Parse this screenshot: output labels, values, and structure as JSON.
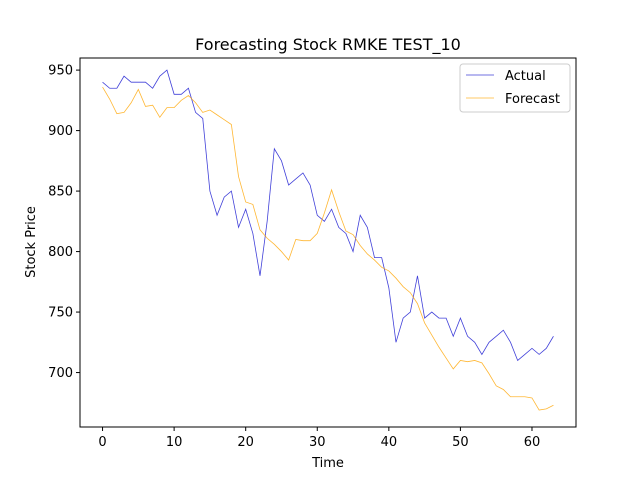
{
  "chart_data": {
    "type": "line",
    "title": "Forecasting Stock RMKE TEST_10",
    "xlabel": "Time",
    "ylabel": "Stock Price",
    "xlim": [
      -3.15,
      66.15
    ],
    "ylim": [
      655,
      960
    ],
    "xticks": [
      0,
      10,
      20,
      30,
      40,
      50,
      60
    ],
    "yticks": [
      700,
      750,
      800,
      850,
      900,
      950
    ],
    "grid": false,
    "legend_position": "top-right",
    "series": [
      {
        "name": "Actual",
        "color": "#0000cc",
        "values": [
          940,
          935,
          935,
          945,
          940,
          940,
          940,
          935,
          945,
          950,
          930,
          930,
          935,
          915,
          910,
          850,
          830,
          845,
          850,
          820,
          835,
          815,
          780,
          825,
          885,
          875,
          855,
          860,
          865,
          855,
          830,
          825,
          835,
          820,
          815,
          800,
          830,
          820,
          795,
          795,
          770,
          725,
          745,
          750,
          780,
          745,
          750,
          745,
          745,
          730,
          745,
          730,
          725,
          715,
          725,
          730,
          735,
          725,
          710,
          715,
          720,
          715,
          720,
          730
        ]
      },
      {
        "name": "Forecast",
        "color": "#ffa500",
        "values": [
          936,
          926,
          914,
          915,
          923,
          934,
          920,
          921,
          911,
          919,
          919,
          925,
          929,
          923,
          915,
          917,
          913,
          909,
          905,
          862,
          841,
          839,
          818,
          811,
          806,
          800,
          793,
          810,
          809,
          809,
          815,
          832,
          851,
          833,
          817,
          814,
          805,
          798,
          793,
          787,
          784,
          778,
          771,
          766,
          757,
          741,
          731,
          721,
          712,
          703,
          710,
          709,
          710,
          708,
          699,
          689,
          686,
          680,
          680,
          680,
          679,
          669,
          670,
          673
        ]
      }
    ]
  }
}
